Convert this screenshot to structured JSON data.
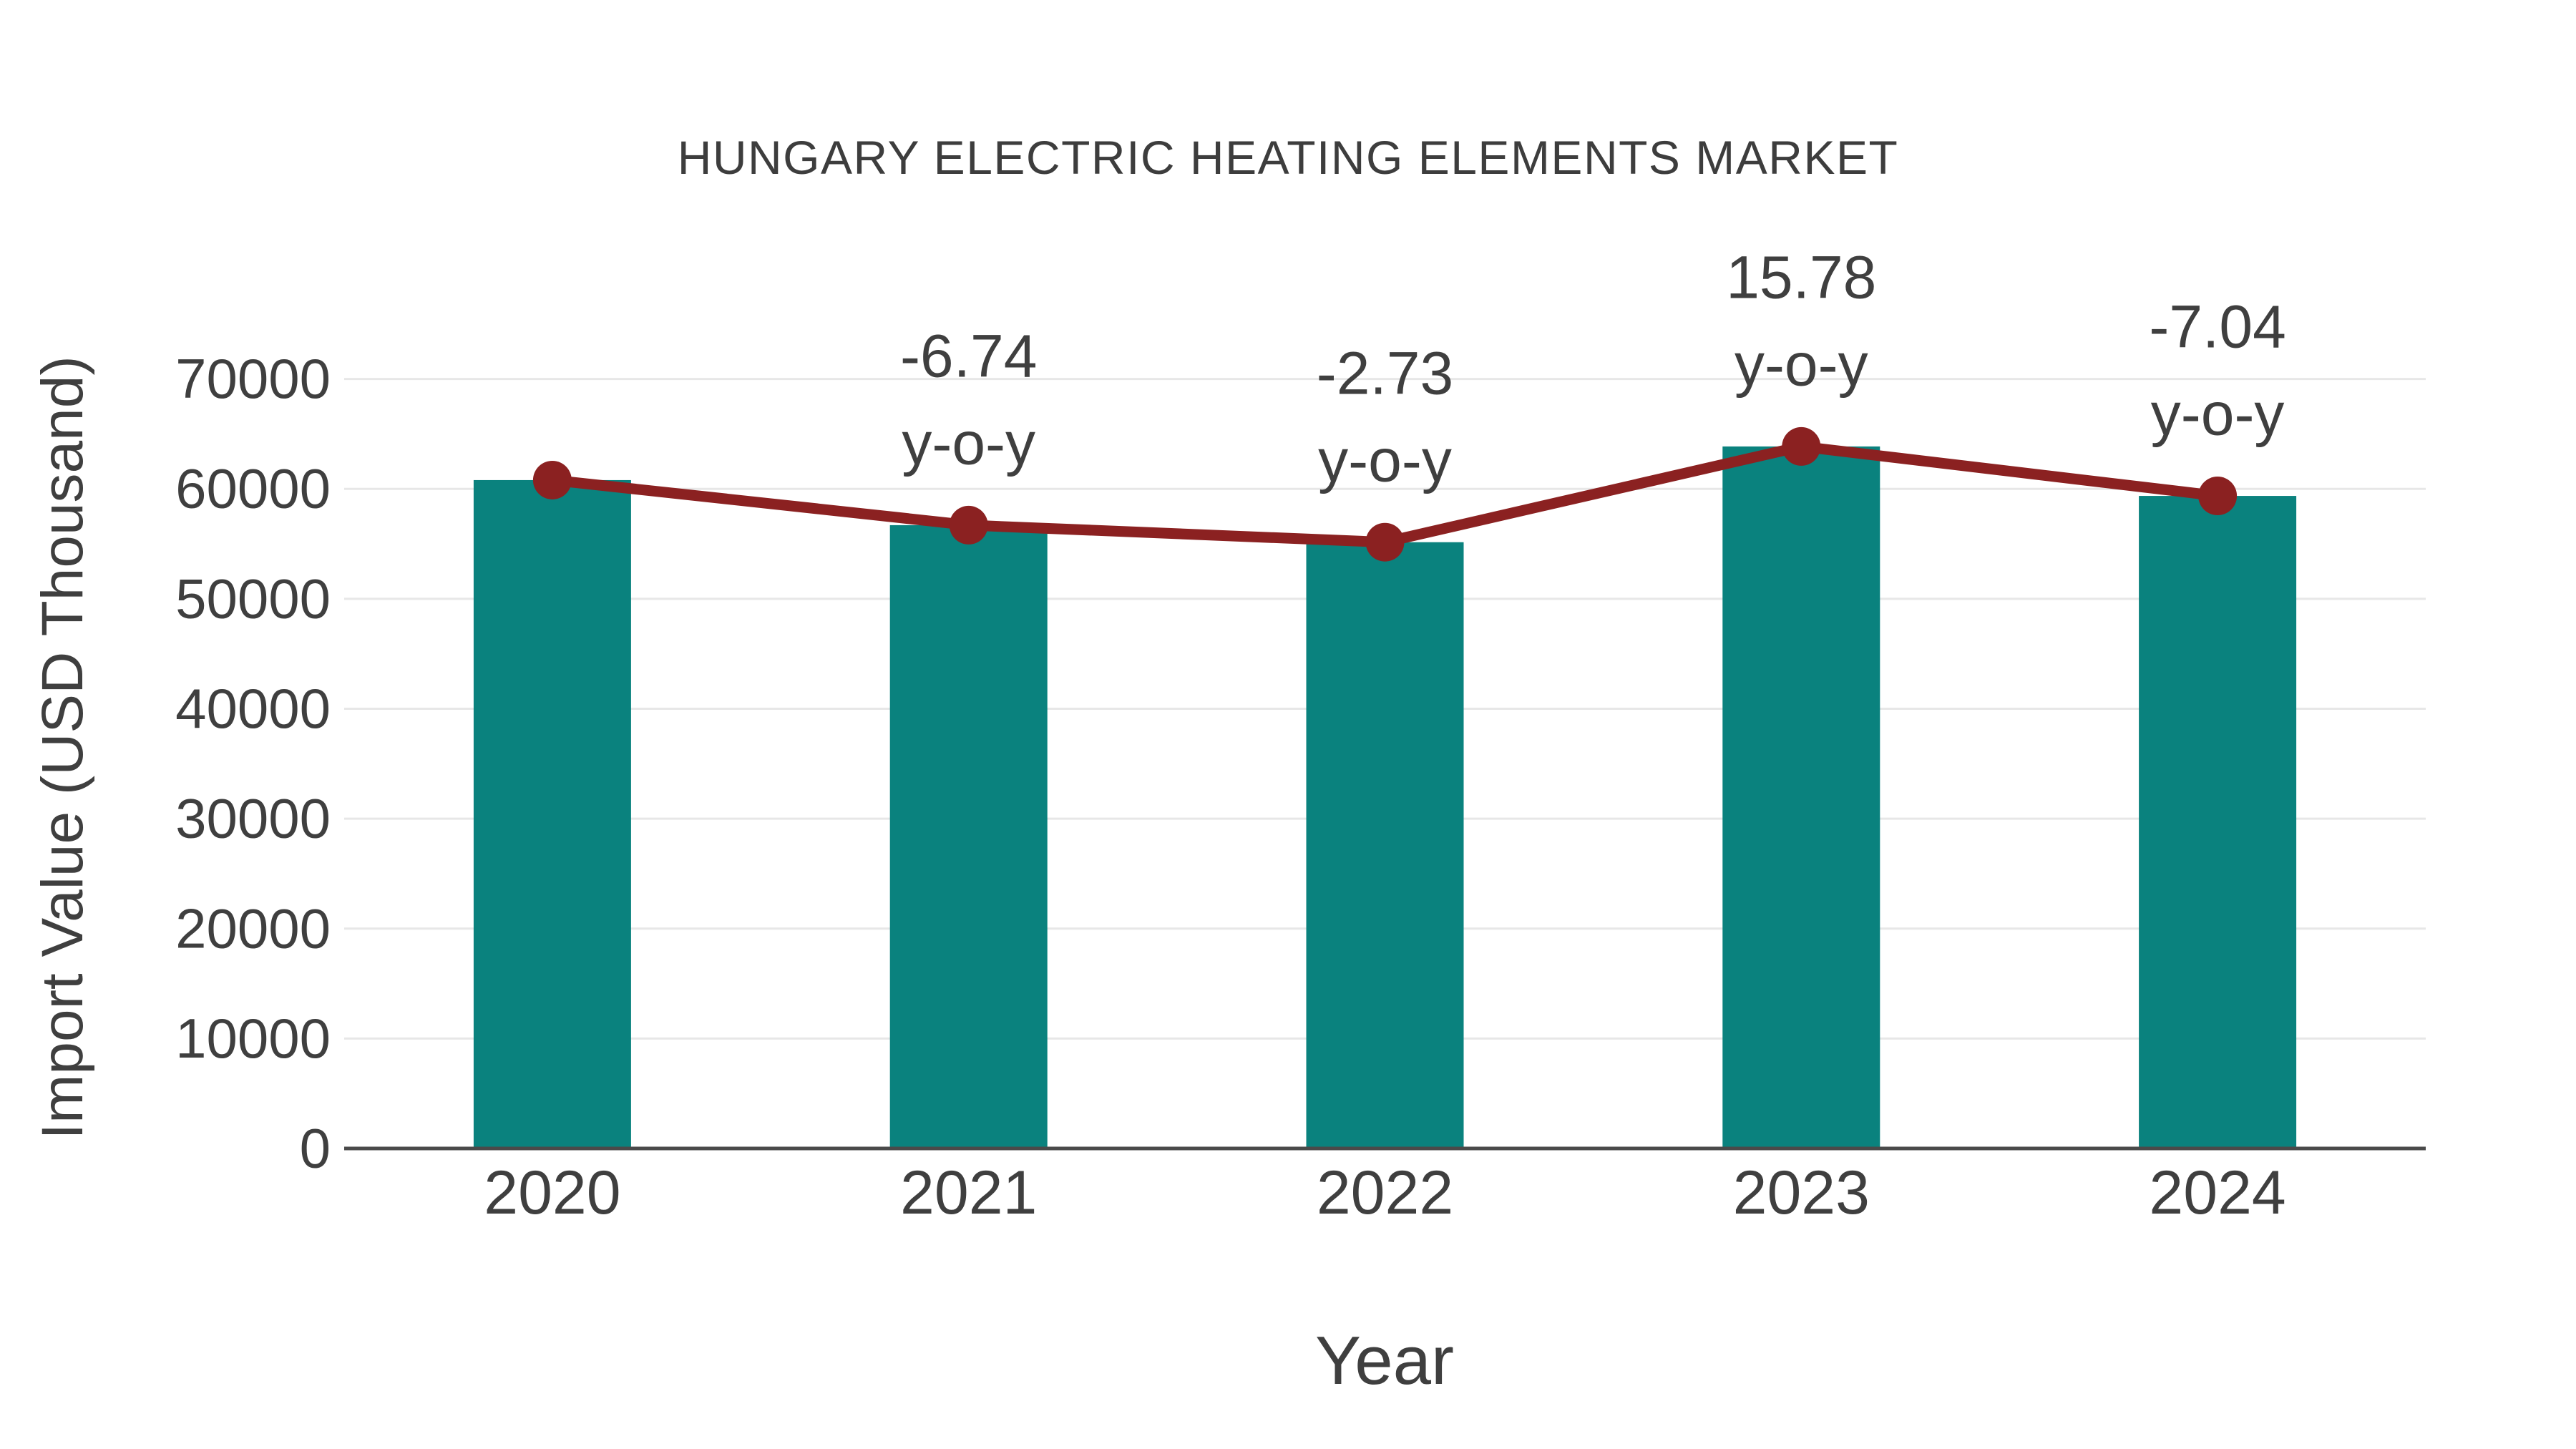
{
  "chart_data": {
    "type": "bar",
    "title": "HUNGARY ELECTRIC HEATING ELEMENTS MARKET",
    "xlabel": "Year",
    "ylabel": "Import Value (USD Thousand)",
    "categories": [
      "2020",
      "2021",
      "2022",
      "2023",
      "2024"
    ],
    "series": [
      {
        "name": "Import Value bars",
        "type": "bar",
        "color": "#0A827E",
        "values": [
          60800,
          56700,
          55150,
          63860,
          59360
        ]
      },
      {
        "name": "Import Value trend line",
        "type": "line",
        "color": "#8B2121",
        "values": [
          60800,
          56700,
          55150,
          63860,
          59360
        ]
      }
    ],
    "annotations": [
      {
        "category": "2021",
        "value_label": "-6.74",
        "suffix_label": "y-o-y"
      },
      {
        "category": "2022",
        "value_label": "-2.73",
        "suffix_label": "y-o-y"
      },
      {
        "category": "2023",
        "value_label": "15.78",
        "suffix_label": "y-o-y"
      },
      {
        "category": "2024",
        "value_label": "-7.04",
        "suffix_label": "y-o-y"
      }
    ],
    "yaxis": {
      "min": 0,
      "max": 70000,
      "tick_step": 10000,
      "tick_labels": [
        "0",
        "10000",
        "20000",
        "30000",
        "40000",
        "50000",
        "60000",
        "70000"
      ]
    },
    "grid": "horizontal",
    "legend": "none",
    "colors": {
      "grid": "#E7E7E7",
      "axis_line": "#4A4A4A",
      "text": "#3F3F3F"
    }
  }
}
